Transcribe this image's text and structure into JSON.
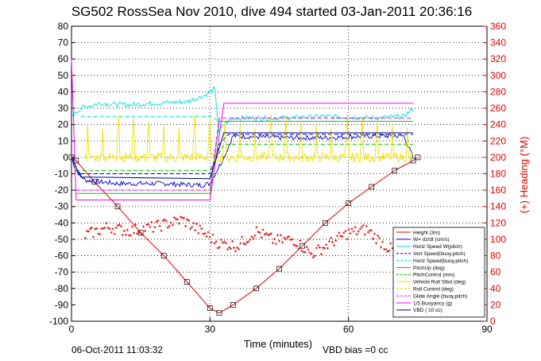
{
  "chart_data": {
    "type": "line",
    "title": "SG502 RossSea Nov 2010, dive 494 started 03-Jan-2011 20:36:16",
    "xlabel": "Time (minutes)",
    "ylabel_right": "(+) Heading (°M)",
    "xlim": [
      0,
      90
    ],
    "ylim": [
      -100,
      80
    ],
    "ylim_right": [
      0,
      360
    ],
    "x_ticks": [
      "0",
      "30",
      "60",
      "90"
    ],
    "y_ticks": [
      "80",
      "70",
      "60",
      "50",
      "40",
      "30",
      "20",
      "10",
      "0",
      "-10",
      "-20",
      "-30",
      "-40",
      "-50",
      "-60",
      "-70",
      "-80",
      "-90",
      "-100"
    ],
    "y_ticks_right": [
      "360",
      "340",
      "320",
      "300",
      "280",
      "260",
      "240",
      "220",
      "200",
      "180",
      "160",
      "140",
      "120",
      "100",
      "80",
      "60",
      "40",
      "20",
      "0"
    ],
    "grid": true,
    "legend_position": "bottom-right",
    "footer_left": "06-Oct-2011 11:03:32",
    "footer_right": "VBD bias =0 cc",
    "series": [
      {
        "name": "Height (3m)",
        "color": "#e00000",
        "style": "line-markers",
        "points": [
          [
            0,
            0
          ],
          [
            1,
            -2
          ],
          [
            5,
            -15
          ],
          [
            10,
            -30
          ],
          [
            15,
            -46
          ],
          [
            20,
            -60
          ],
          [
            25,
            -76
          ],
          [
            30,
            -92
          ],
          [
            32,
            -95
          ],
          [
            35,
            -90
          ],
          [
            40,
            -80
          ],
          [
            45,
            -68
          ],
          [
            50,
            -54
          ],
          [
            55,
            -40
          ],
          [
            60,
            -28
          ],
          [
            65,
            -18
          ],
          [
            70,
            -8
          ],
          [
            74,
            -2
          ],
          [
            75,
            0
          ]
        ]
      },
      {
        "name": "W= dz/dt (cm/s)",
        "color": "#0000cc",
        "style": "noisy",
        "points": [
          [
            0,
            0
          ],
          [
            1,
            -8
          ],
          [
            3,
            -14
          ],
          [
            10,
            -16
          ],
          [
            20,
            -16
          ],
          [
            28,
            -17
          ],
          [
            30,
            -16
          ],
          [
            33,
            0
          ],
          [
            35,
            13
          ],
          [
            45,
            12
          ],
          [
            55,
            12
          ],
          [
            65,
            13
          ],
          [
            72,
            13
          ],
          [
            74,
            0
          ]
        ]
      },
      {
        "name": "Horiz Speed W(pitch)",
        "color": "#00e0e0",
        "style": "noisy",
        "points": [
          [
            0,
            25
          ],
          [
            2,
            30
          ],
          [
            6,
            33
          ],
          [
            12,
            32
          ],
          [
            18,
            33
          ],
          [
            25,
            34
          ],
          [
            29,
            38
          ],
          [
            31,
            42
          ],
          [
            32,
            15
          ],
          [
            33,
            20
          ],
          [
            35,
            24
          ],
          [
            45,
            24
          ],
          [
            55,
            25
          ],
          [
            65,
            24
          ],
          [
            72,
            25
          ],
          [
            74,
            30
          ]
        ]
      },
      {
        "name": "Vert Speed(buoy,pitch)",
        "color": "#0000cc",
        "style": "dashed",
        "points": [
          [
            2,
            -10
          ],
          [
            30,
            -10
          ],
          [
            32,
            8
          ],
          [
            34,
            14
          ],
          [
            74,
            14
          ]
        ]
      },
      {
        "name": "Horiz Speed(buoy,pitch)",
        "color": "#00e0e0",
        "style": "dashed",
        "points": [
          [
            2,
            25
          ],
          [
            30,
            25
          ],
          [
            32,
            22
          ],
          [
            34,
            22
          ],
          [
            74,
            22
          ]
        ]
      },
      {
        "name": "PitchUp (deg)",
        "color": "#00cc00",
        "style": "solid",
        "points": [
          [
            1,
            -22
          ],
          [
            30,
            -22
          ],
          [
            32,
            22
          ],
          [
            74,
            22
          ]
        ]
      },
      {
        "name": "PitchControl (mm)",
        "color": "#00cc00",
        "style": "dashed",
        "points": [
          [
            1,
            -8
          ],
          [
            30,
            -8
          ],
          [
            33,
            8
          ],
          [
            74,
            8
          ]
        ]
      },
      {
        "name": "Vehicle Roll Stbd (deg)",
        "color": "#f0e000",
        "style": "spiky",
        "points": [
          [
            3,
            0
          ],
          [
            74,
            0
          ]
        ]
      },
      {
        "name": "Roll Control (deg)",
        "color": "#f0e000",
        "style": "dashed",
        "points": [
          [
            3,
            0
          ],
          [
            74,
            0
          ]
        ]
      },
      {
        "name": "Glide Angle (buoy,pitch)",
        "color": "#ff00ff",
        "style": "dashed",
        "points": [
          [
            1,
            -20
          ],
          [
            30,
            -20
          ],
          [
            32,
            24
          ],
          [
            74,
            24
          ]
        ]
      },
      {
        "name": "1/5 Buoyancy (g)",
        "color": "#ff00ff",
        "style": "solid",
        "points": [
          [
            0,
            60
          ],
          [
            1,
            -26
          ],
          [
            30,
            -26
          ],
          [
            33,
            33
          ],
          [
            74,
            33
          ]
        ]
      },
      {
        "name": "VBD ( 10 cc)",
        "color": "#000080",
        "style": "solid",
        "points": [
          [
            0,
            0
          ],
          [
            2,
            -12
          ],
          [
            30,
            -13
          ],
          [
            33,
            15
          ],
          [
            74,
            15
          ]
        ]
      },
      {
        "name": "Heading",
        "color": "#e00000",
        "style": "plus-markers",
        "axis": "right",
        "points": [
          [
            3,
            105
          ],
          [
            8,
            115
          ],
          [
            12,
            110
          ],
          [
            18,
            115
          ],
          [
            24,
            124
          ],
          [
            28,
            110
          ],
          [
            32,
            95
          ],
          [
            36,
            92
          ],
          [
            40,
            110
          ],
          [
            44,
            98
          ],
          [
            48,
            100
          ],
          [
            52,
            82
          ],
          [
            56,
            95
          ],
          [
            60,
            108
          ],
          [
            64,
            112
          ],
          [
            68,
            92
          ],
          [
            71,
            82
          ],
          [
            73,
            100
          ]
        ]
      }
    ]
  }
}
